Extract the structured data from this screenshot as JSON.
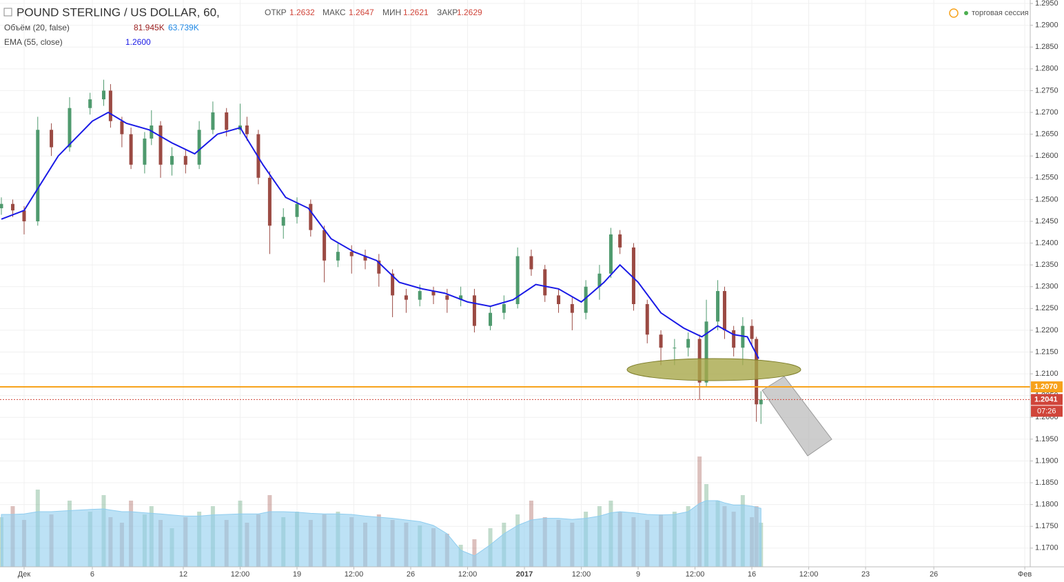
{
  "chart_data": {
    "type": "candlestick",
    "title": "POUND STERLING / US DOLLAR, 60,",
    "header": {
      "open_label": "ОТКР",
      "open": 1.2632,
      "high_label": "МАКС",
      "high": 1.2647,
      "low_label": "МИН",
      "low": 1.2621,
      "close_label": "ЗАКР",
      "close": 1.2629,
      "session": "торговая сессия"
    },
    "volume_legend": {
      "name": "Объём (20, false)",
      "volume": {
        "value": 81945,
        "label": "81.945K"
      },
      "average": {
        "value": 63739,
        "label": "63.739K"
      }
    },
    "ema_legend": {
      "name": "EMA (55, close)",
      "last": {
        "value": 1.26,
        "label": "1.2600"
      }
    },
    "xlim": [
      -1.06,
      44.24
    ],
    "xticks": [
      {
        "value": 0,
        "label": "Дек"
      },
      {
        "value": 3,
        "label": "6"
      },
      {
        "value": 7,
        "label": "12"
      },
      {
        "value": 9.5,
        "label": "12:00"
      },
      {
        "value": 12,
        "label": "19"
      },
      {
        "value": 14.5,
        "label": "12:00"
      },
      {
        "value": 17,
        "label": "26"
      },
      {
        "value": 19.5,
        "label": "12:00"
      },
      {
        "value": 22,
        "label": "2017"
      },
      {
        "value": 24.5,
        "label": "12:00"
      },
      {
        "value": 27,
        "label": "9"
      },
      {
        "value": 29.5,
        "label": "12:00"
      },
      {
        "value": 32,
        "label": "16"
      },
      {
        "value": 34.5,
        "label": "12:00"
      },
      {
        "value": 37,
        "label": "23"
      },
      {
        "value": 40,
        "label": "26"
      },
      {
        "value": 44,
        "label": "Фев"
      }
    ],
    "ylim": [
      1.1657,
      1.2958
    ],
    "yticks": [
      {
        "value": 1.17,
        "label": "1.1700"
      },
      {
        "value": 1.175,
        "label": "1.1750"
      },
      {
        "value": 1.18,
        "label": "1.1800"
      },
      {
        "value": 1.185,
        "label": "1.1850"
      },
      {
        "value": 1.19,
        "label": "1.1900"
      },
      {
        "value": 1.195,
        "label": "1.1950"
      },
      {
        "value": 1.2,
        "label": "1.2000"
      },
      {
        "value": 1.205,
        "label": "1.2050"
      },
      {
        "value": 1.21,
        "label": "1.2100"
      },
      {
        "value": 1.215,
        "label": "1.2150"
      },
      {
        "value": 1.22,
        "label": "1.2200"
      },
      {
        "value": 1.225,
        "label": "1.2250"
      },
      {
        "value": 1.23,
        "label": "1.2300"
      },
      {
        "value": 1.235,
        "label": "1.2350"
      },
      {
        "value": 1.24,
        "label": "1.2400"
      },
      {
        "value": 1.245,
        "label": "1.2450"
      },
      {
        "value": 1.25,
        "label": "1.2500"
      },
      {
        "value": 1.255,
        "label": "1.2550"
      },
      {
        "value": 1.26,
        "label": "1.2600"
      },
      {
        "value": 1.265,
        "label": "1.2650"
      },
      {
        "value": 1.27,
        "label": "1.2700"
      },
      {
        "value": 1.275,
        "label": "1.2750"
      },
      {
        "value": 1.28,
        "label": "1.2800"
      },
      {
        "value": 1.285,
        "label": "1.2850"
      },
      {
        "value": 1.29,
        "label": "1.2900"
      },
      {
        "value": 1.295,
        "label": "1.2950"
      }
    ],
    "grid": true,
    "up_color": "#4f9a6e",
    "down_color": "#9b4a43",
    "x": [
      -1.0,
      -0.5,
      0.0,
      0.6,
      1.2,
      2.0,
      2.9,
      3.5,
      3.8,
      4.3,
      4.7,
      5.3,
      5.6,
      6.0,
      6.5,
      7.1,
      7.7,
      8.3,
      8.9,
      9.5,
      9.8,
      10.3,
      10.8,
      11.4,
      12.0,
      12.6,
      13.2,
      13.8,
      14.4,
      15.0,
      15.6,
      16.2,
      16.8,
      17.4,
      18.0,
      18.6,
      19.2,
      19.8,
      20.5,
      21.1,
      21.7,
      22.3,
      22.9,
      23.5,
      24.1,
      24.7,
      25.3,
      25.8,
      26.2,
      26.8,
      27.4,
      28.0,
      28.6,
      29.2,
      29.7,
      30.0,
      30.5,
      30.8,
      31.2,
      31.6,
      32.0,
      32.2,
      32.4
    ],
    "open": [
      1.248,
      1.249,
      1.2475,
      1.245,
      1.266,
      1.262,
      1.271,
      1.273,
      1.275,
      1.268,
      1.265,
      1.258,
      1.264,
      1.267,
      1.258,
      1.26,
      1.258,
      1.266,
      1.27,
      1.266,
      1.267,
      1.265,
      1.255,
      1.244,
      1.246,
      1.249,
      1.243,
      1.236,
      1.238,
      1.237,
      1.236,
      1.233,
      1.228,
      1.227,
      1.229,
      1.228,
      1.227,
      1.228,
      1.221,
      1.224,
      1.226,
      1.237,
      1.234,
      1.228,
      1.226,
      1.224,
      1.23,
      1.233,
      1.242,
      1.239,
      1.226,
      1.219,
      1.216,
      1.216,
      1.218,
      1.208,
      1.222,
      1.229,
      1.22,
      1.216,
      1.221,
      1.218,
      1.203
    ],
    "high": [
      1.2505,
      1.25,
      1.2485,
      1.269,
      1.2675,
      1.2735,
      1.2745,
      1.2775,
      1.2765,
      1.269,
      1.2665,
      1.2655,
      1.2705,
      1.268,
      1.262,
      1.2615,
      1.268,
      1.2725,
      1.271,
      1.272,
      1.269,
      1.266,
      1.2565,
      1.248,
      1.2505,
      1.25,
      1.244,
      1.24,
      1.2395,
      1.2385,
      1.2375,
      1.234,
      1.2295,
      1.2305,
      1.23,
      1.2295,
      1.23,
      1.2295,
      1.2255,
      1.228,
      1.239,
      1.2385,
      1.235,
      1.2295,
      1.2275,
      1.2315,
      1.235,
      1.2435,
      1.243,
      1.24,
      1.227,
      1.22,
      1.218,
      1.2195,
      1.219,
      1.227,
      1.2315,
      1.23,
      1.221,
      1.223,
      1.2225,
      1.2185,
      1.206
    ],
    "low": [
      1.2465,
      1.246,
      1.242,
      1.244,
      1.26,
      1.261,
      1.2695,
      1.2715,
      1.2665,
      1.262,
      1.257,
      1.256,
      1.2625,
      1.255,
      1.2555,
      1.256,
      1.257,
      1.265,
      1.2645,
      1.265,
      1.2635,
      1.2535,
      1.2375,
      1.241,
      1.2445,
      1.2415,
      1.231,
      1.2345,
      1.233,
      1.234,
      1.23,
      1.223,
      1.224,
      1.2255,
      1.226,
      1.224,
      1.2255,
      1.2195,
      1.22,
      1.2225,
      1.225,
      1.2325,
      1.2265,
      1.224,
      1.22,
      1.2225,
      1.227,
      1.232,
      1.2375,
      1.2245,
      1.217,
      1.212,
      1.212,
      1.214,
      1.204,
      1.207,
      1.22,
      1.218,
      1.214,
      1.212,
      1.2165,
      1.199,
      1.1985
    ],
    "close": [
      1.249,
      1.2475,
      1.245,
      1.266,
      1.262,
      1.271,
      1.273,
      1.275,
      1.268,
      1.265,
      1.258,
      1.264,
      1.267,
      1.258,
      1.26,
      1.258,
      1.266,
      1.27,
      1.266,
      1.267,
      1.265,
      1.255,
      1.244,
      1.246,
      1.249,
      1.243,
      1.236,
      1.238,
      1.237,
      1.236,
      1.233,
      1.228,
      1.227,
      1.229,
      1.228,
      1.227,
      1.228,
      1.221,
      1.224,
      1.226,
      1.237,
      1.234,
      1.228,
      1.226,
      1.224,
      1.23,
      1.233,
      1.242,
      1.239,
      1.226,
      1.219,
      1.216,
      1.216,
      1.218,
      1.208,
      1.222,
      1.229,
      1.22,
      1.216,
      1.221,
      1.218,
      1.203,
      1.2041
    ],
    "ema": {
      "color": "#1a1ae6",
      "x": [
        -1,
        0,
        1.5,
        3,
        3.7,
        4.5,
        5.5,
        6.5,
        7.5,
        8.5,
        9.5,
        10.5,
        11.5,
        12.5,
        13.5,
        14.5,
        15.5,
        16.5,
        17.5,
        18.5,
        19.5,
        20.5,
        21.5,
        22.5,
        23.5,
        24.5,
        25.5,
        26.2,
        27,
        28,
        29,
        29.8,
        30.5,
        31.2,
        31.8,
        32.3
      ],
      "values": [
        1.2455,
        1.2475,
        1.26,
        1.268,
        1.27,
        1.2675,
        1.266,
        1.263,
        1.2605,
        1.265,
        1.2665,
        1.258,
        1.2505,
        1.248,
        1.241,
        1.238,
        1.236,
        1.231,
        1.2295,
        1.2285,
        1.2265,
        1.2255,
        1.227,
        1.2305,
        1.2295,
        1.2265,
        1.231,
        1.235,
        1.231,
        1.224,
        1.2205,
        1.2185,
        1.221,
        1.219,
        1.2185,
        1.2135
      ]
    },
    "volume_lim": [
      0,
      250
    ],
    "volume": [
      90,
      110,
      85,
      140,
      95,
      120,
      100,
      130,
      90,
      80,
      120,
      95,
      110,
      85,
      70,
      90,
      100,
      110,
      85,
      120,
      80,
      95,
      130,
      90,
      100,
      85,
      95,
      100,
      90,
      80,
      95,
      85,
      80,
      75,
      70,
      60,
      40,
      50,
      70,
      80,
      95,
      120,
      90,
      85,
      80,
      100,
      110,
      120,
      100,
      90,
      85,
      95,
      100,
      110,
      200,
      150,
      120,
      110,
      100,
      130,
      90,
      110,
      80
    ],
    "volume_ma": {
      "color": "#8fcdef",
      "values": [
        95,
        95,
        96,
        100,
        100,
        102,
        104,
        105,
        103,
        100,
        100,
        98,
        97,
        96,
        94,
        92,
        92,
        94,
        95,
        96,
        96,
        96,
        100,
        100,
        99,
        97,
        96,
        96,
        95,
        92,
        90,
        88,
        85,
        82,
        75,
        60,
        30,
        20,
        40,
        60,
        75,
        85,
        88,
        88,
        86,
        88,
        92,
        98,
        100,
        98,
        95,
        94,
        95,
        100,
        115,
        120,
        120,
        116,
        112,
        112,
        110,
        108,
        106
      ]
    },
    "levels": [
      {
        "value": 1.207,
        "label": "1.2070",
        "color": "#f7a21b",
        "style": "solid"
      },
      {
        "value": 1.2041,
        "label": "1.2041",
        "color": "#d0453a",
        "style": "dotted"
      }
    ],
    "countdown": "07:26"
  }
}
